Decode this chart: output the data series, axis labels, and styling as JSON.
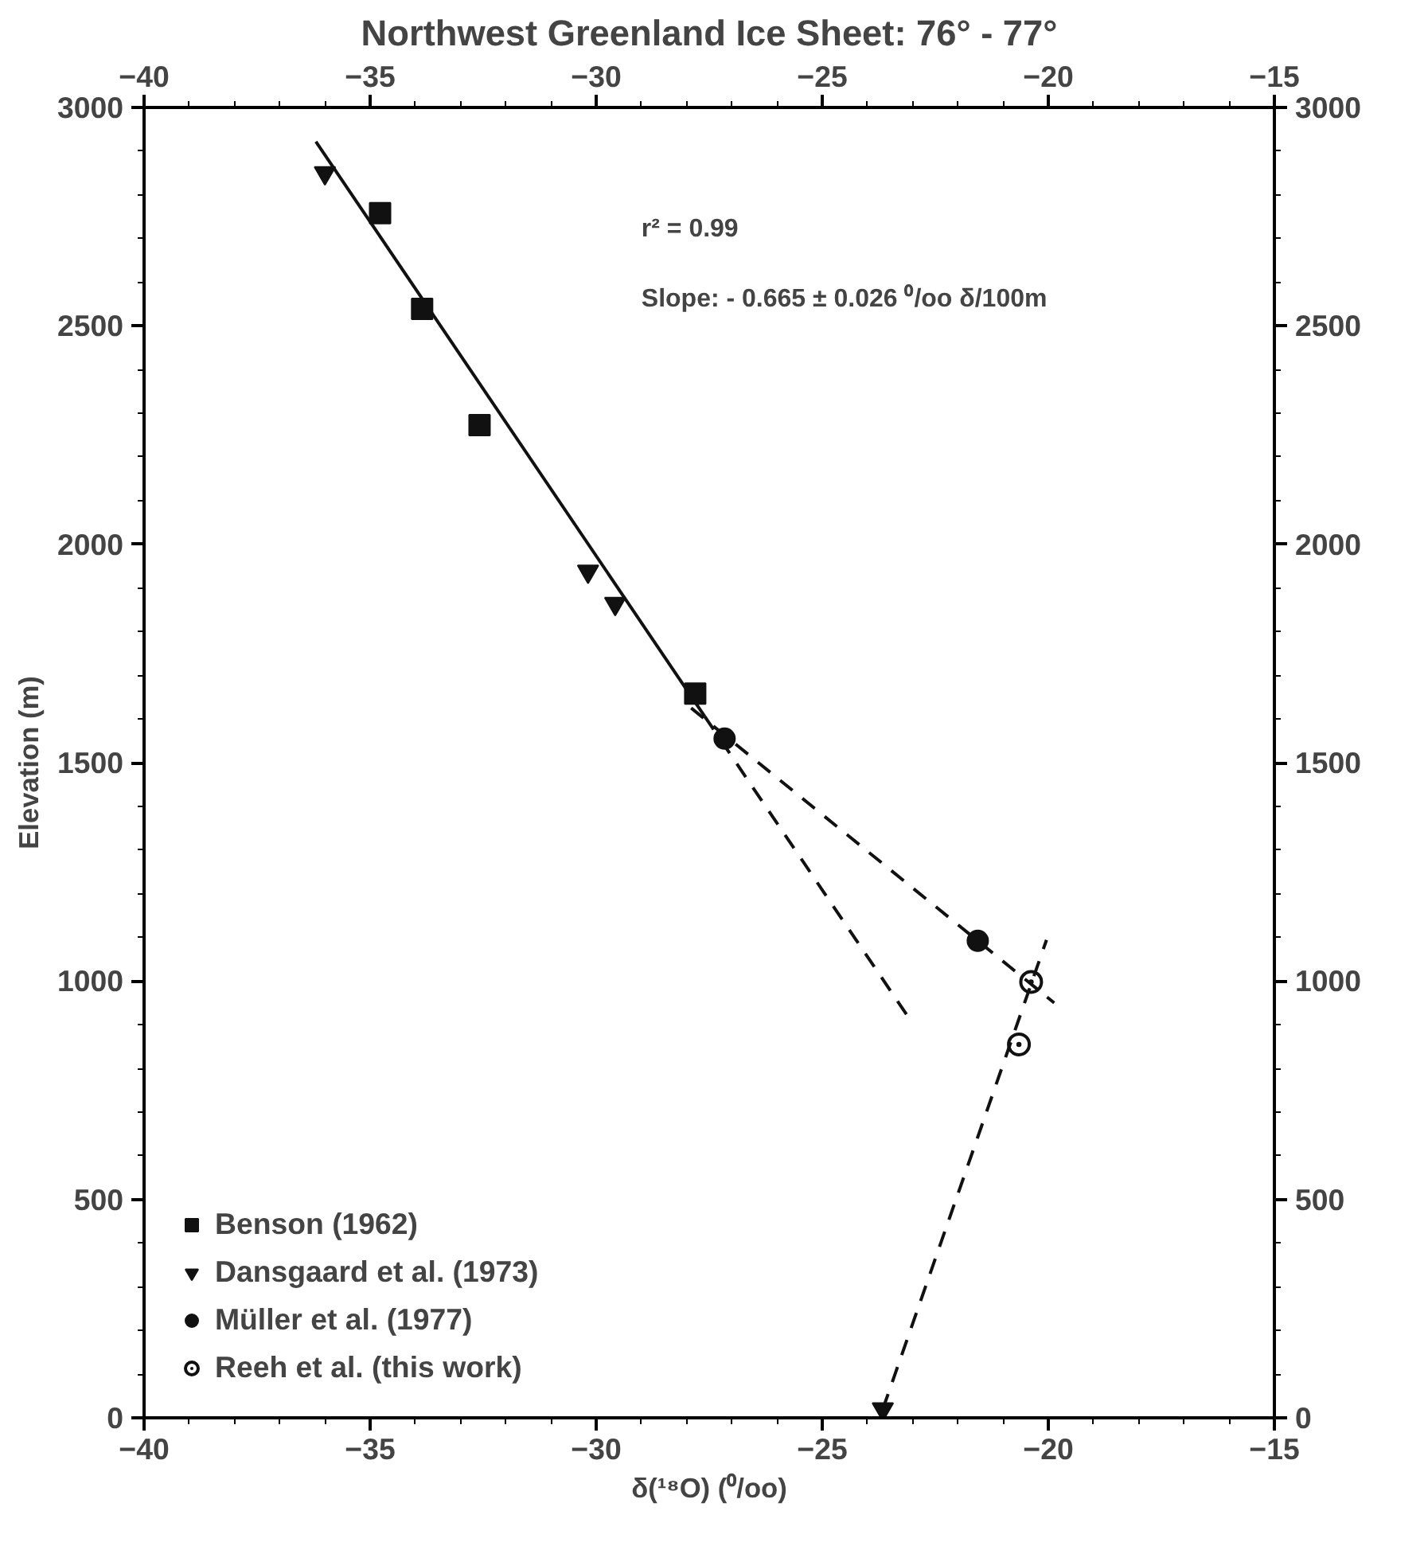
{
  "chart_data": {
    "type": "scatter",
    "title": "Northwest Greenland Ice Sheet: 76° - 77°",
    "xlabel": "δ(¹⁸O) (⁰/oo)",
    "ylabel": "Elevation (m)",
    "xlim": [
      -40,
      -15
    ],
    "xticks": [
      -40,
      -35,
      -30,
      -25,
      -20,
      -15
    ],
    "x2lim": [
      -40,
      -15
    ],
    "x2ticks": [
      -40,
      -35,
      -30,
      -25,
      -20,
      -15
    ],
    "ylim": [
      0,
      3000
    ],
    "yticks": [
      0,
      500,
      1000,
      1500,
      2000,
      2500,
      3000
    ],
    "y2lim": [
      0,
      3000
    ],
    "y2ticks": [
      0,
      500,
      1000,
      1500,
      2000,
      2500,
      3000
    ],
    "grid": false,
    "legend": "bottom left",
    "annotations": [
      "r² = 0.99",
      "Slope: - 0.665 ± 0.026 ⁰/oo δ/100m"
    ],
    "series": [
      {
        "name": "Benson (1962)",
        "marker": "square",
        "color": "#111111",
        "x": [
          -34.78,
          -33.85,
          -32.58,
          -27.81
        ],
        "values": [
          2758,
          2539,
          2273,
          1658
        ]
      },
      {
        "name": "Dansgaard et al. (1973)",
        "marker": "triangle",
        "color": "#111111",
        "x": [
          -36.0,
          -30.18,
          -29.58,
          -23.66
        ],
        "values": [
          2850,
          1938,
          1864,
          20
        ]
      },
      {
        "name": "Müller et al. (1977)",
        "marker": "circle",
        "color": "#111111",
        "x": [
          -27.16,
          -21.56
        ],
        "values": [
          1555,
          1092
        ]
      },
      {
        "name": "Reeh et al. (this work)",
        "marker": "circle",
        "color": "#ffffff",
        "x": [
          -20.38,
          -20.65
        ],
        "values": [
          998,
          855
        ]
      },
      {
        "type": "line",
        "line_style": "solid",
        "color": "#111111",
        "x": [
          -36.2,
          -27.6
        ],
        "values": [
          2922,
          1606
        ]
      },
      {
        "type": "line",
        "line_style": "dashed",
        "color": "#111111",
        "x": [
          -27.6,
          -23.08
        ],
        "values": [
          1606,
          915
        ]
      },
      {
        "type": "line",
        "line_style": "dashed",
        "color": "#111111",
        "x": [
          -27.9,
          -19.87
        ],
        "values": [
          1625,
          950
        ]
      },
      {
        "type": "line",
        "line_style": "dashed",
        "color": "#111111",
        "x": [
          -23.66,
          -20.04
        ],
        "values": [
          20,
          1094
        ]
      }
    ]
  }
}
